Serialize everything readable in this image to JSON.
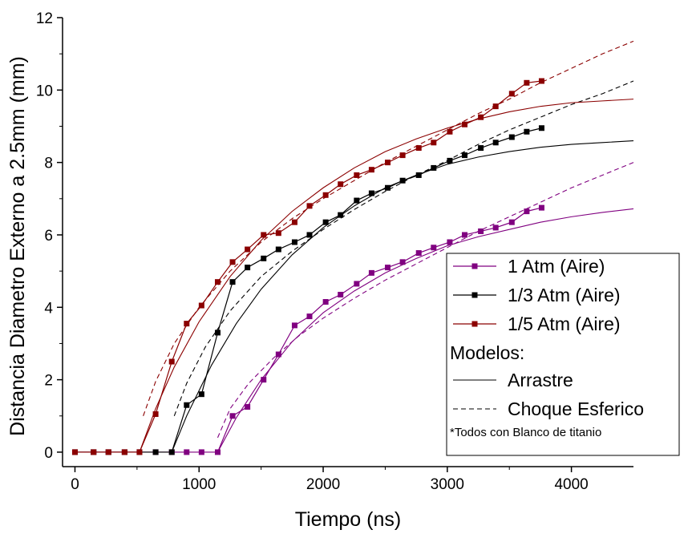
{
  "chart_data": {
    "type": "line",
    "title": "",
    "xlabel": "Tiempo (ns)",
    "ylabel": "Distancia Diametro Externo a 2.5mm (mm)",
    "xlim": [
      -100,
      4500
    ],
    "ylim": [
      -0.4,
      12
    ],
    "xticks": [
      0,
      1000,
      2000,
      3000,
      4000
    ],
    "yticks": [
      0,
      2,
      4,
      6,
      8,
      10,
      12
    ],
    "xtick_labels": [
      "0",
      "1000",
      "2000",
      "3000",
      "4000"
    ],
    "ytick_labels": [
      "0",
      "2",
      "4",
      "6",
      "8",
      "10",
      "12"
    ],
    "grid": false,
    "legend_position": "bottom-right",
    "series": [
      {
        "name": "1 Atm (Aire)",
        "color": "#800080",
        "marker": "square",
        "x": [
          0,
          150,
          270,
          400,
          520,
          650,
          780,
          900,
          1020,
          1150,
          1270,
          1390,
          1520,
          1640,
          1770,
          1890,
          2020,
          2140,
          2270,
          2390,
          2520,
          2640,
          2770,
          2890,
          3020,
          3140,
          3270,
          3390,
          3520,
          3640,
          3760
        ],
        "y": [
          0,
          0,
          0,
          0,
          0,
          0,
          0,
          0,
          0,
          0,
          1.0,
          1.25,
          2.0,
          2.7,
          3.5,
          3.75,
          4.15,
          4.35,
          4.65,
          4.95,
          5.1,
          5.25,
          5.5,
          5.65,
          5.8,
          6.0,
          6.1,
          6.2,
          6.35,
          6.65,
          6.75
        ]
      },
      {
        "name": "1/3 Atm (Aire)",
        "color": "#000000",
        "marker": "square",
        "x": [
          0,
          150,
          270,
          400,
          520,
          650,
          780,
          900,
          1020,
          1150,
          1270,
          1390,
          1520,
          1640,
          1770,
          1890,
          2020,
          2140,
          2270,
          2390,
          2520,
          2640,
          2770,
          2890,
          3020,
          3140,
          3270,
          3390,
          3520,
          3640,
          3760
        ],
        "y": [
          0,
          0,
          0,
          0,
          0,
          0,
          0,
          1.3,
          1.6,
          3.3,
          4.7,
          5.1,
          5.35,
          5.6,
          5.8,
          6.0,
          6.35,
          6.55,
          6.95,
          7.15,
          7.3,
          7.5,
          7.65,
          7.85,
          8.05,
          8.2,
          8.4,
          8.55,
          8.7,
          8.85,
          8.95
        ]
      },
      {
        "name": "1/5 Atm (Aire)",
        "color": "#8B0000",
        "marker": "square",
        "x": [
          0,
          150,
          270,
          400,
          520,
          650,
          780,
          900,
          1020,
          1150,
          1270,
          1390,
          1520,
          1640,
          1770,
          1890,
          2020,
          2140,
          2270,
          2390,
          2520,
          2640,
          2770,
          2890,
          3020,
          3140,
          3270,
          3390,
          3520,
          3640,
          3760
        ],
        "y": [
          0,
          0,
          0,
          0,
          0,
          1.05,
          2.5,
          3.55,
          4.05,
          4.7,
          5.25,
          5.6,
          6.0,
          6.05,
          6.35,
          6.8,
          7.1,
          7.4,
          7.65,
          7.8,
          8.0,
          8.2,
          8.4,
          8.55,
          8.85,
          9.05,
          9.25,
          9.55,
          9.9,
          10.2,
          10.25
        ]
      }
    ],
    "models": [
      {
        "model": "Arrastre",
        "style": "solid",
        "series": "1 Atm (Aire)",
        "color": "#800080",
        "x": [
          1150,
          1300,
          1500,
          1750,
          2000,
          2250,
          2500,
          2750,
          3000,
          3250,
          3500,
          3750,
          4000,
          4250,
          4500
        ],
        "y": [
          0,
          0.95,
          2.0,
          3.05,
          3.85,
          4.45,
          4.95,
          5.35,
          5.7,
          5.95,
          6.15,
          6.35,
          6.5,
          6.62,
          6.72
        ]
      },
      {
        "model": "Choque Esferico",
        "style": "dashed",
        "series": "1 Atm (Aire)",
        "color": "#800080",
        "x": [
          1150,
          1250,
          1400,
          1600,
          1800,
          2000,
          2250,
          2500,
          2750,
          3000,
          3250,
          3500,
          3750,
          4000,
          4250,
          4500
        ],
        "y": [
          0.4,
          1.2,
          1.9,
          2.6,
          3.2,
          3.7,
          4.25,
          4.75,
          5.2,
          5.65,
          6.1,
          6.5,
          6.9,
          7.3,
          7.65,
          8.0
        ]
      },
      {
        "model": "Arrastre",
        "style": "solid",
        "series": "1/3 Atm (Aire)",
        "color": "#000000",
        "x": [
          780,
          900,
          1100,
          1300,
          1500,
          1750,
          2000,
          2250,
          2500,
          2750,
          3000,
          3250,
          3500,
          3750,
          4000,
          4250,
          4500
        ],
        "y": [
          0,
          1.0,
          2.4,
          3.55,
          4.5,
          5.45,
          6.2,
          6.8,
          7.3,
          7.65,
          7.95,
          8.15,
          8.3,
          8.42,
          8.5,
          8.55,
          8.6
        ]
      },
      {
        "model": "Choque Esferico",
        "style": "dashed",
        "series": "1/3 Atm (Aire)",
        "color": "#000000",
        "x": [
          800,
          900,
          1050,
          1250,
          1500,
          1750,
          2000,
          2250,
          2500,
          2750,
          3000,
          3250,
          3500,
          3750,
          4000,
          4250,
          4500
        ],
        "y": [
          1.0,
          1.9,
          2.9,
          3.9,
          4.85,
          5.55,
          6.15,
          6.7,
          7.2,
          7.65,
          8.05,
          8.5,
          8.9,
          9.25,
          9.6,
          9.9,
          10.25
        ]
      },
      {
        "model": "Arrastre",
        "style": "solid",
        "series": "1/5 Atm (Aire)",
        "color": "#8B0000",
        "x": [
          520,
          650,
          800,
          1000,
          1250,
          1500,
          1750,
          2000,
          2250,
          2500,
          2750,
          3000,
          3250,
          3500,
          3750,
          4000,
          4250,
          4500
        ],
        "y": [
          0,
          1.2,
          2.35,
          3.6,
          4.85,
          5.85,
          6.65,
          7.3,
          7.85,
          8.3,
          8.65,
          8.95,
          9.2,
          9.4,
          9.55,
          9.65,
          9.7,
          9.75
        ]
      },
      {
        "model": "Choque Esferico",
        "style": "dashed",
        "series": "1/5 Atm (Aire)",
        "color": "#8B0000",
        "x": [
          550,
          650,
          800,
          1000,
          1250,
          1500,
          1750,
          2000,
          2250,
          2500,
          2750,
          3000,
          3250,
          3500,
          3750,
          4000,
          4250,
          4500
        ],
        "y": [
          1.0,
          1.95,
          3.0,
          4.0,
          5.0,
          5.8,
          6.45,
          7.0,
          7.5,
          8.0,
          8.45,
          8.9,
          9.35,
          9.75,
          10.2,
          10.6,
          11.0,
          11.35
        ]
      }
    ],
    "legend": {
      "entries": [
        {
          "label": "1 Atm (Aire)",
          "color": "#800080",
          "kind": "series"
        },
        {
          "label": "1/3 Atm (Aire)",
          "color": "#000000",
          "kind": "series"
        },
        {
          "label": "1/5 Atm (Aire)",
          "color": "#8B0000",
          "kind": "series"
        }
      ],
      "models_heading": "Modelos:",
      "model_entries": [
        {
          "label": "Arrastre",
          "style": "solid"
        },
        {
          "label": "Choque Esferico",
          "style": "dashed"
        }
      ],
      "note": "*Todos con Blanco de titanio"
    }
  }
}
